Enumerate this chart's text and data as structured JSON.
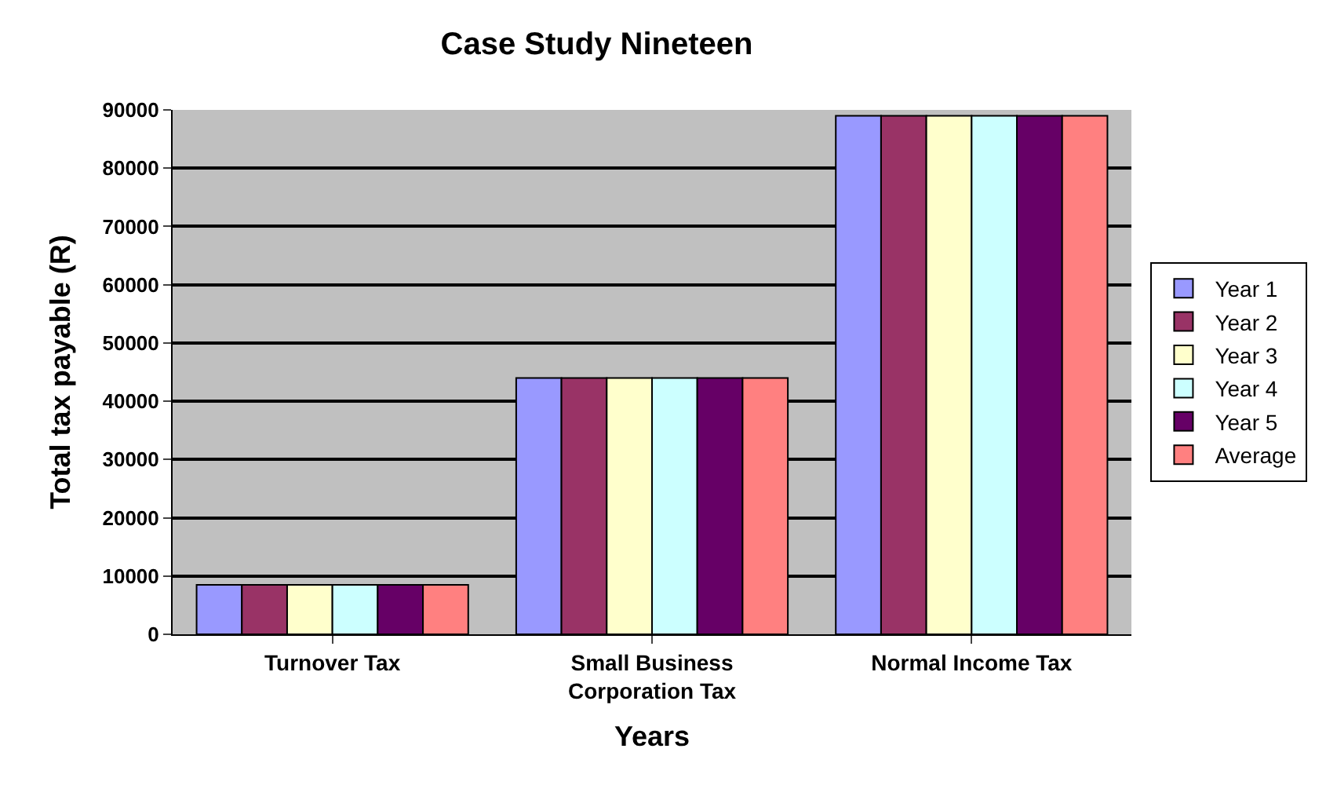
{
  "chart_data": {
    "type": "bar",
    "title": "Case Study Nineteen",
    "xlabel": "Years",
    "ylabel": "Total tax payable (R)",
    "categories": [
      "Turnover Tax",
      "Small Business Corporation Tax",
      "Normal Income Tax"
    ],
    "series": [
      {
        "name": "Year 1",
        "color": "#9999ff",
        "values": [
          8500,
          44000,
          89000
        ]
      },
      {
        "name": "Year 2",
        "color": "#993366",
        "values": [
          8500,
          44000,
          89000
        ]
      },
      {
        "name": "Year 3",
        "color": "#ffffcc",
        "values": [
          8500,
          44000,
          89000
        ]
      },
      {
        "name": "Year 4",
        "color": "#ccffff",
        "values": [
          8500,
          44000,
          89000
        ]
      },
      {
        "name": "Year 5",
        "color": "#660066",
        "values": [
          8500,
          44000,
          89000
        ]
      },
      {
        "name": "Average",
        "color": "#ff8080",
        "values": [
          8500,
          44000,
          89000
        ]
      }
    ],
    "ylim": [
      0,
      90000
    ],
    "yticks": [
      0,
      10000,
      20000,
      30000,
      40000,
      50000,
      60000,
      70000,
      80000,
      90000
    ],
    "grid": "y",
    "legend": "right"
  }
}
